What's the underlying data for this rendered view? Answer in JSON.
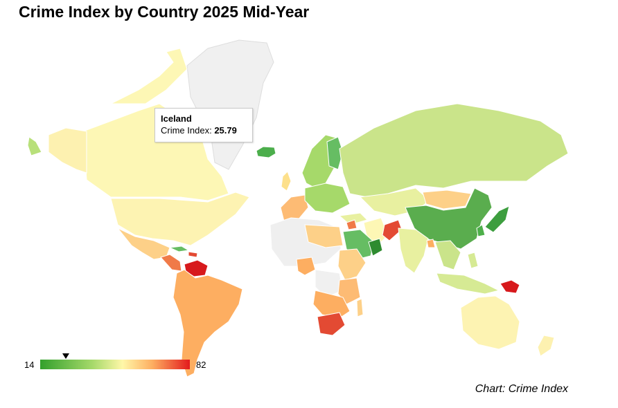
{
  "title": "Crime Index by Country 2025 Mid-Year",
  "tooltip": {
    "country": "Iceland",
    "label": "Crime Index:",
    "value": "25.79",
    "value_num": 25.79
  },
  "legend": {
    "min": "14",
    "max": "82",
    "min_num": 14,
    "max_num": 82
  },
  "credit": "Chart: Crime Index",
  "colors": {
    "no_data": "#f1f1f1",
    "low": "#33a02c",
    "mid": "#fff7a8",
    "high": "#e31a1c",
    "ocean": "#ffffff"
  }
}
